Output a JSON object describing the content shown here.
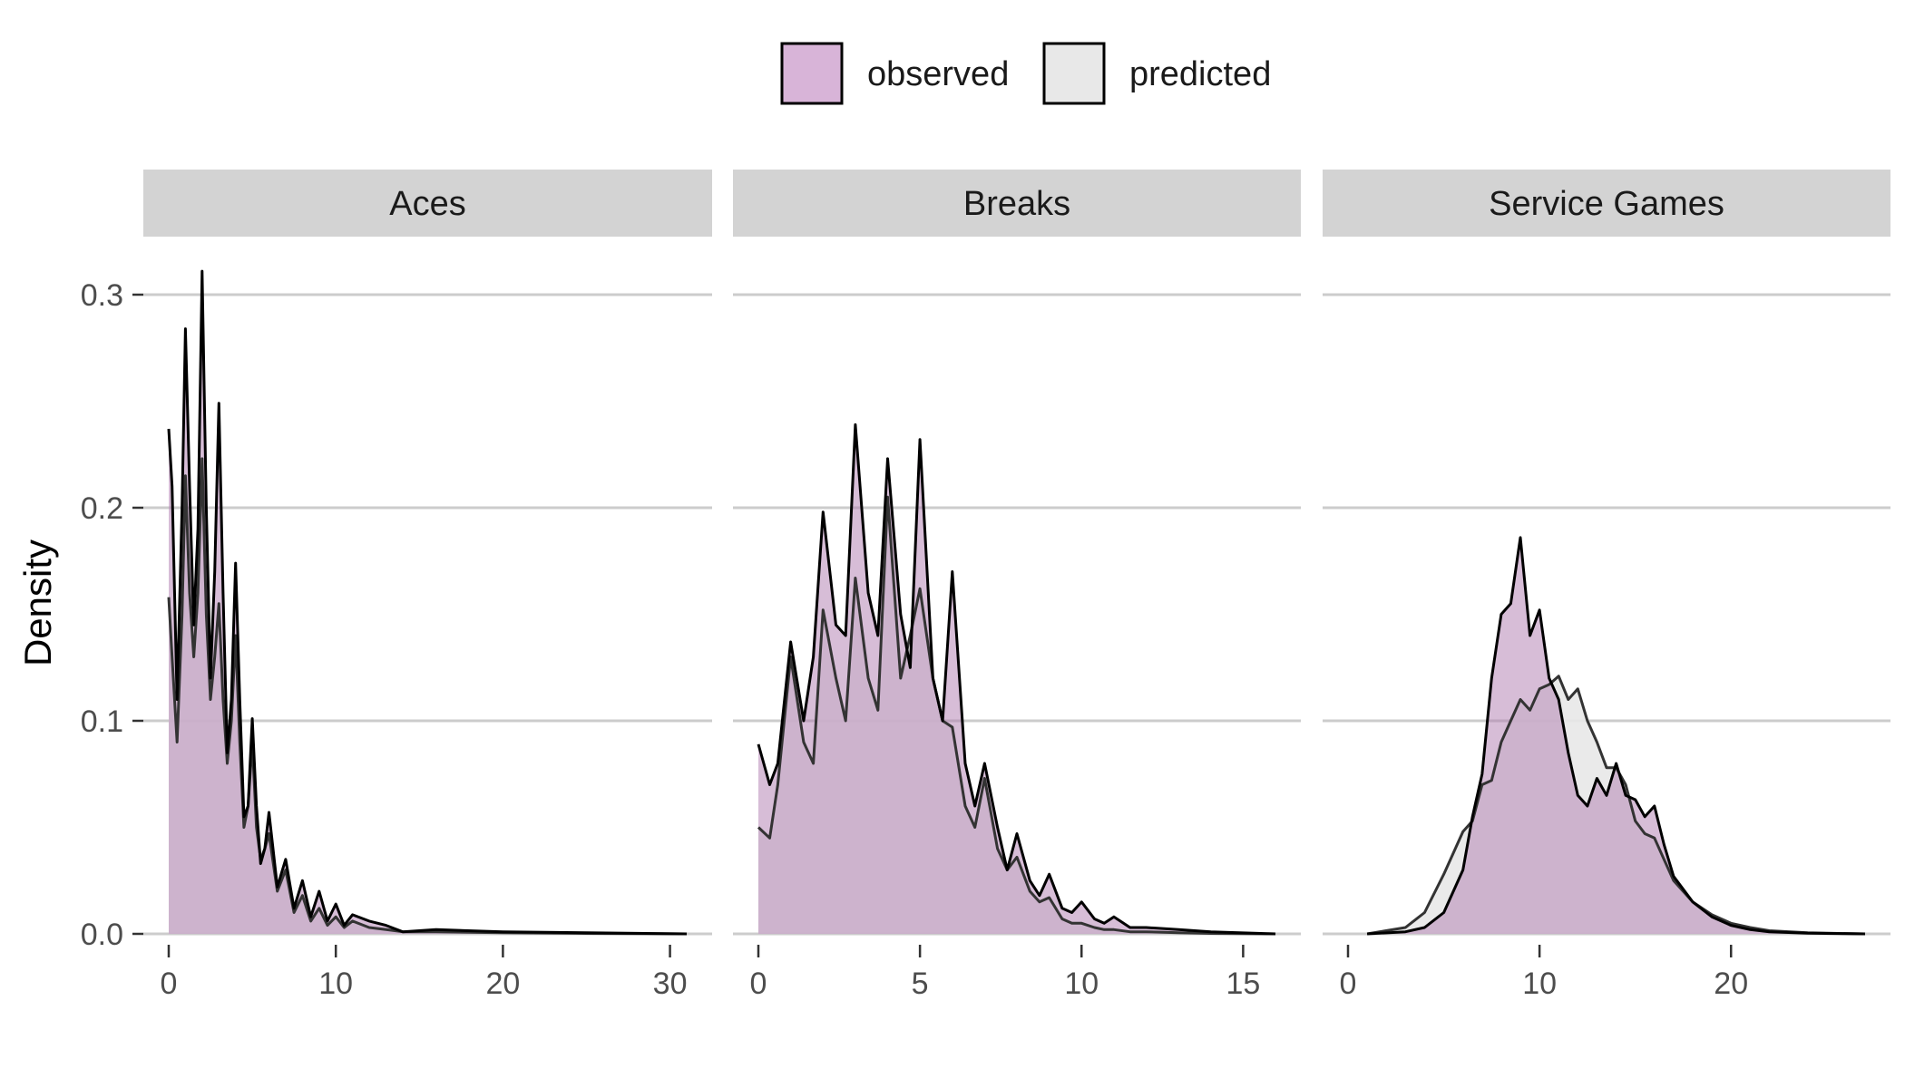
{
  "legend": {
    "items": [
      {
        "label": "observed",
        "fill": "#D8B4D8"
      },
      {
        "label": "predicted",
        "fill": "#E8E8E8"
      }
    ]
  },
  "ylabel": "Density",
  "colors": {
    "observed_fill": "#D8B4D8",
    "predicted_fill": "#E8E8E8",
    "overlap_fill": "#C9B3C9",
    "line": "#000000",
    "strip_bg": "#D3D3D3",
    "grid": "#CCCCCC"
  },
  "y_axis": {
    "ylim": [
      0,
      0.3
    ],
    "ticks": [
      0.0,
      0.1,
      0.2,
      0.3
    ],
    "tick_labels": [
      "0.0",
      "0.1",
      "0.2",
      "0.3"
    ]
  },
  "chart_data": [
    {
      "type": "area",
      "title": "Aces",
      "xlim": [
        0,
        31
      ],
      "xticks": [
        0,
        10,
        20,
        30
      ],
      "xtick_labels": [
        "0",
        "10",
        "20",
        "30"
      ],
      "ylim": [
        0,
        0.3
      ],
      "series": [
        {
          "name": "observed",
          "x": [
            0,
            0.2,
            0.5,
            0.8,
            1,
            1.25,
            1.5,
            1.75,
            2,
            2.25,
            2.5,
            2.75,
            3,
            3.25,
            3.5,
            3.75,
            4,
            4.25,
            4.5,
            4.75,
            5,
            5.25,
            5.5,
            5.75,
            6,
            6.5,
            7,
            7.5,
            8,
            8.5,
            9,
            9.5,
            10,
            10.5,
            11,
            12,
            13,
            14,
            16,
            20,
            25,
            31
          ],
          "y": [
            0.237,
            0.21,
            0.11,
            0.2,
            0.284,
            0.21,
            0.145,
            0.19,
            0.311,
            0.2,
            0.12,
            0.17,
            0.249,
            0.16,
            0.085,
            0.11,
            0.174,
            0.11,
            0.055,
            0.06,
            0.101,
            0.06,
            0.033,
            0.04,
            0.057,
            0.022,
            0.035,
            0.012,
            0.025,
            0.008,
            0.02,
            0.006,
            0.014,
            0.004,
            0.009,
            0.006,
            0.004,
            0.001,
            0.002,
            0.001,
            0.0005,
            0
          ]
        },
        {
          "name": "predicted",
          "x": [
            0,
            0.2,
            0.5,
            0.8,
            1,
            1.25,
            1.5,
            1.75,
            2,
            2.25,
            2.5,
            2.75,
            3,
            3.25,
            3.5,
            3.75,
            4,
            4.25,
            4.5,
            4.75,
            5,
            5.25,
            5.5,
            5.75,
            6,
            6.5,
            7,
            7.5,
            8,
            8.5,
            9,
            9.5,
            10,
            10.5,
            11,
            12,
            13,
            14,
            16,
            20,
            25,
            31
          ],
          "y": [
            0.158,
            0.13,
            0.09,
            0.15,
            0.215,
            0.16,
            0.13,
            0.16,
            0.223,
            0.15,
            0.11,
            0.13,
            0.155,
            0.11,
            0.08,
            0.1,
            0.14,
            0.09,
            0.05,
            0.06,
            0.09,
            0.05,
            0.035,
            0.04,
            0.047,
            0.02,
            0.03,
            0.01,
            0.018,
            0.006,
            0.012,
            0.004,
            0.008,
            0.003,
            0.006,
            0.003,
            0.002,
            0.001,
            0.001,
            0.0005,
            0.0002,
            0
          ]
        }
      ]
    },
    {
      "type": "area",
      "title": "Breaks",
      "xlim": [
        0,
        16
      ],
      "xticks": [
        0,
        5,
        10,
        15
      ],
      "xtick_labels": [
        "0",
        "5",
        "10",
        "15"
      ],
      "ylim": [
        0,
        0.3
      ],
      "series": [
        {
          "name": "observed",
          "x": [
            0,
            0.35,
            0.6,
            1,
            1.4,
            1.7,
            2,
            2.4,
            2.7,
            3,
            3.4,
            3.7,
            4,
            4.4,
            4.7,
            5,
            5.4,
            5.7,
            6,
            6.4,
            6.7,
            7,
            7.4,
            7.7,
            8,
            8.4,
            8.7,
            9,
            9.4,
            9.7,
            10,
            10.4,
            10.7,
            11,
            11.5,
            12,
            13,
            14,
            16
          ],
          "y": [
            0.089,
            0.07,
            0.08,
            0.137,
            0.1,
            0.13,
            0.198,
            0.145,
            0.14,
            0.239,
            0.16,
            0.14,
            0.223,
            0.15,
            0.125,
            0.232,
            0.12,
            0.1,
            0.17,
            0.08,
            0.06,
            0.08,
            0.05,
            0.03,
            0.047,
            0.025,
            0.018,
            0.028,
            0.012,
            0.01,
            0.015,
            0.007,
            0.005,
            0.008,
            0.003,
            0.003,
            0.002,
            0.001,
            0
          ]
        },
        {
          "name": "predicted",
          "x": [
            0,
            0.35,
            0.6,
            1,
            1.4,
            1.7,
            2,
            2.4,
            2.7,
            3,
            3.4,
            3.7,
            4,
            4.4,
            4.7,
            5,
            5.4,
            5.7,
            6,
            6.4,
            6.7,
            7,
            7.4,
            7.7,
            8,
            8.4,
            8.7,
            9,
            9.4,
            9.7,
            10,
            10.4,
            10.7,
            11,
            11.5,
            12,
            13,
            14,
            16
          ],
          "y": [
            0.05,
            0.045,
            0.07,
            0.13,
            0.09,
            0.08,
            0.152,
            0.12,
            0.1,
            0.167,
            0.12,
            0.105,
            0.205,
            0.12,
            0.14,
            0.162,
            0.12,
            0.1,
            0.097,
            0.06,
            0.05,
            0.073,
            0.04,
            0.03,
            0.036,
            0.02,
            0.015,
            0.017,
            0.007,
            0.005,
            0.005,
            0.003,
            0.002,
            0.002,
            0.001,
            0.001,
            0.0005,
            0.0002,
            0
          ]
        }
      ]
    },
    {
      "type": "area",
      "title": "Service Games",
      "xlim": [
        0,
        27
      ],
      "xticks": [
        0,
        10,
        20
      ],
      "xtick_labels": [
        "0",
        "10",
        "20"
      ],
      "ylim": [
        0,
        0.3
      ],
      "series": [
        {
          "name": "observed",
          "x": [
            1,
            3,
            4,
            5,
            6,
            6.5,
            7,
            7.5,
            8,
            8.5,
            9,
            9.5,
            10,
            10.5,
            11,
            11.5,
            12,
            12.5,
            13,
            13.5,
            14,
            14.5,
            15,
            15.5,
            16,
            16.5,
            17,
            18,
            19,
            20,
            21,
            22,
            24,
            27
          ],
          "y": [
            0,
            0.001,
            0.003,
            0.01,
            0.03,
            0.055,
            0.075,
            0.12,
            0.15,
            0.155,
            0.186,
            0.14,
            0.152,
            0.12,
            0.11,
            0.085,
            0.065,
            0.06,
            0.073,
            0.065,
            0.08,
            0.065,
            0.063,
            0.055,
            0.06,
            0.042,
            0.027,
            0.015,
            0.008,
            0.004,
            0.002,
            0.001,
            0.0003,
            0
          ]
        },
        {
          "name": "predicted",
          "x": [
            1,
            3,
            4,
            5,
            6,
            6.5,
            7,
            7.5,
            8,
            8.5,
            9,
            9.5,
            10,
            10.5,
            11,
            11.5,
            12,
            12.5,
            13,
            13.5,
            14,
            14.5,
            15,
            15.5,
            16,
            16.5,
            17,
            18,
            19,
            20,
            21,
            22,
            24,
            27
          ],
          "y": [
            0,
            0.003,
            0.01,
            0.028,
            0.048,
            0.053,
            0.07,
            0.072,
            0.09,
            0.1,
            0.11,
            0.105,
            0.115,
            0.117,
            0.121,
            0.11,
            0.115,
            0.1,
            0.09,
            0.078,
            0.078,
            0.07,
            0.053,
            0.047,
            0.045,
            0.035,
            0.025,
            0.015,
            0.009,
            0.005,
            0.003,
            0.0015,
            0.0005,
            0
          ]
        }
      ]
    }
  ]
}
